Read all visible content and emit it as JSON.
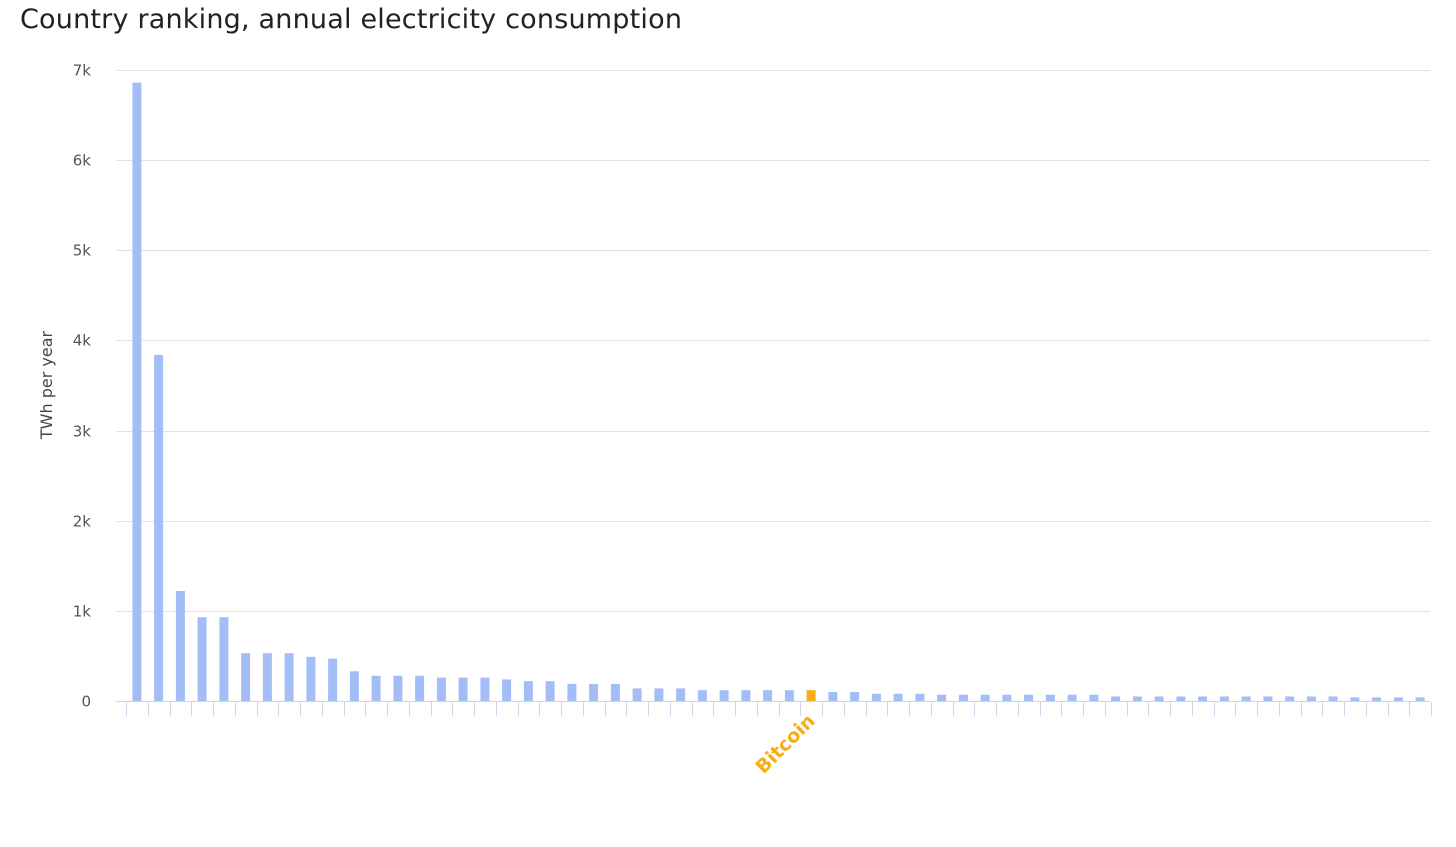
{
  "chart_data": {
    "type": "bar",
    "title": "Country ranking, annual electricity consumption",
    "xlabel": "",
    "ylabel": "TWh per year",
    "ylim": [
      0,
      7000
    ],
    "yticks": [
      0,
      1000,
      2000,
      3000,
      4000,
      5000,
      6000,
      7000
    ],
    "ytick_labels": [
      "0",
      "1k",
      "2k",
      "3k",
      "4k",
      "5k",
      "6k",
      "7k"
    ],
    "grid": true,
    "legend": "none",
    "categories": [
      "",
      "",
      "",
      "",
      "",
      "",
      "",
      "",
      "",
      "",
      "",
      "",
      "",
      "",
      "",
      "",
      "",
      "",
      "",
      "",
      "",
      "",
      "",
      "",
      "",
      "",
      "",
      "",
      "",
      "",
      "",
      "Bitcoin",
      "",
      "",
      "",
      "",
      "",
      "",
      "",
      "",
      "",
      "",
      "",
      "",
      "",
      "",
      "",
      "",
      "",
      "",
      "",
      "",
      "",
      "",
      "",
      "",
      "",
      "",
      "",
      ""
    ],
    "values": [
      6860,
      3840,
      1220,
      930,
      930,
      530,
      530,
      530,
      490,
      470,
      330,
      280,
      280,
      280,
      260,
      260,
      260,
      240,
      220,
      220,
      190,
      190,
      190,
      140,
      140,
      140,
      120,
      120,
      120,
      120,
      120,
      120,
      100,
      100,
      80,
      80,
      80,
      70,
      70,
      70,
      70,
      70,
      70,
      70,
      70,
      50,
      50,
      50,
      50,
      50,
      50,
      50,
      50,
      50,
      50,
      50,
      40,
      40,
      40,
      40
    ],
    "highlight_index": 31
  },
  "colors": {
    "bar": "#a3bdf6",
    "highlight": "#f7ad17",
    "grid": "#e0e0e0",
    "axis": "#ccd6eb"
  }
}
